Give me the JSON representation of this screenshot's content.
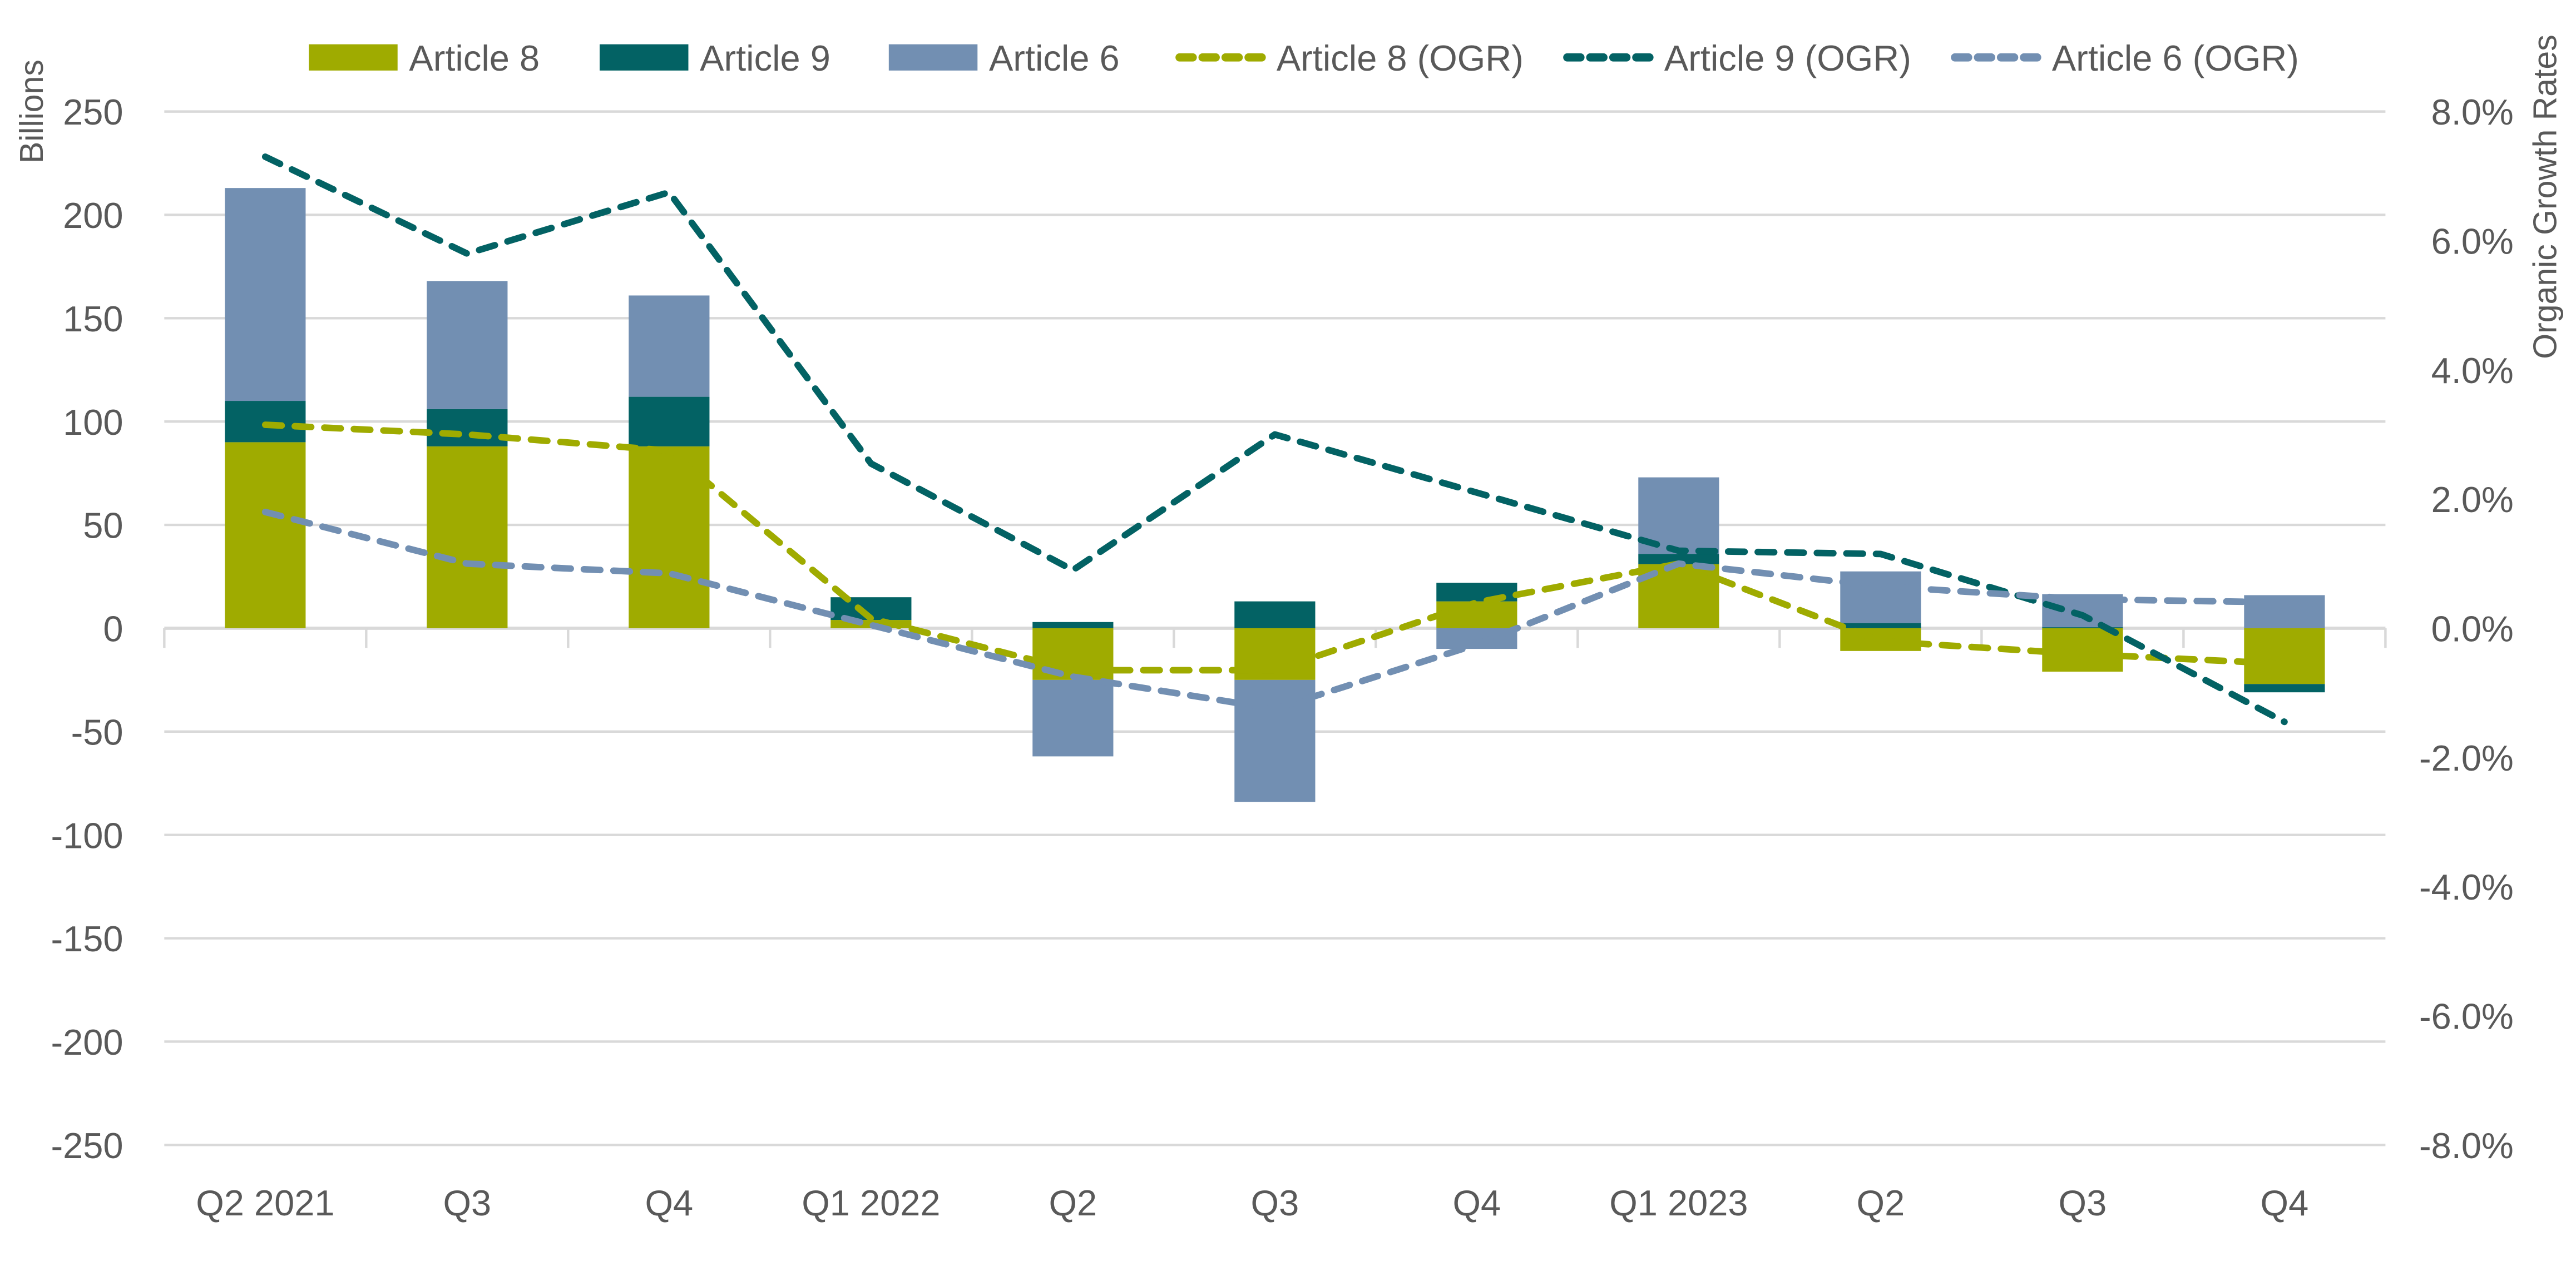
{
  "chart_data": {
    "type": "bar",
    "subtype": "stacked-bar-with-lines",
    "title": "",
    "categories": [
      "Q2 2021",
      "Q3",
      "Q4",
      "Q1 2022",
      "Q2",
      "Q3",
      "Q4",
      "Q1 2023",
      "Q2",
      "Q3",
      "Q4"
    ],
    "ylabel": "Billions",
    "y2label": "Organic Growth Rates",
    "ylim": [
      -250,
      250
    ],
    "y2lim": [
      -8.0,
      8.0
    ],
    "yticks": [
      250,
      200,
      150,
      100,
      50,
      0,
      -50,
      -100,
      -150,
      -200,
      -250
    ],
    "y2ticks": [
      "8.0%",
      "6.0%",
      "4.0%",
      "2.0%",
      "0.0%",
      "-2.0%",
      "-4.0%",
      "-6.0%",
      "-8.0%"
    ],
    "y2tick_values": [
      8,
      6,
      4,
      2,
      0,
      -2,
      -4,
      -6,
      -8
    ],
    "grid": true,
    "legend_position": "top",
    "bar_series": [
      {
        "name": "Article 8",
        "color": "#9fab00",
        "values": [
          90,
          88,
          88,
          4,
          -25,
          -25,
          13,
          31,
          -11,
          -21,
          -27
        ]
      },
      {
        "name": "Article 9",
        "color": "#036264",
        "values": [
          20,
          18,
          24,
          11,
          3,
          13,
          9,
          5,
          2.5,
          0.5,
          -4
        ]
      },
      {
        "name": "Article 6",
        "color": "#728fb2",
        "values": [
          103,
          62,
          49,
          0,
          -37,
          -59,
          -10,
          37,
          25,
          16,
          16
        ]
      }
    ],
    "line_series": [
      {
        "name": "Article 8 (OGR)",
        "color": "#9fab00",
        "axis": "right",
        "dashed": true,
        "values": [
          3.15,
          3.0,
          2.75,
          0.15,
          -0.65,
          -0.65,
          0.4,
          1.0,
          -0.2,
          -0.4,
          -0.55
        ]
      },
      {
        "name": "Article 9 (OGR)",
        "color": "#036264",
        "axis": "right",
        "dashed": true,
        "values": [
          7.3,
          5.8,
          6.75,
          2.55,
          0.9,
          3.0,
          2.1,
          1.2,
          1.15,
          0.2,
          -1.45
        ]
      },
      {
        "name": "Article 6 (OGR)",
        "color": "#728fb2",
        "axis": "right",
        "dashed": true,
        "values": [
          1.8,
          1.0,
          0.85,
          0.05,
          -0.75,
          -1.25,
          -0.25,
          1.0,
          0.65,
          0.45,
          0.4
        ]
      }
    ],
    "legend": [
      "Article 8",
      "Article 9",
      "Article 6",
      "Article 8 (OGR)",
      "Article 9 (OGR)",
      "Article 6 (OGR)"
    ]
  }
}
